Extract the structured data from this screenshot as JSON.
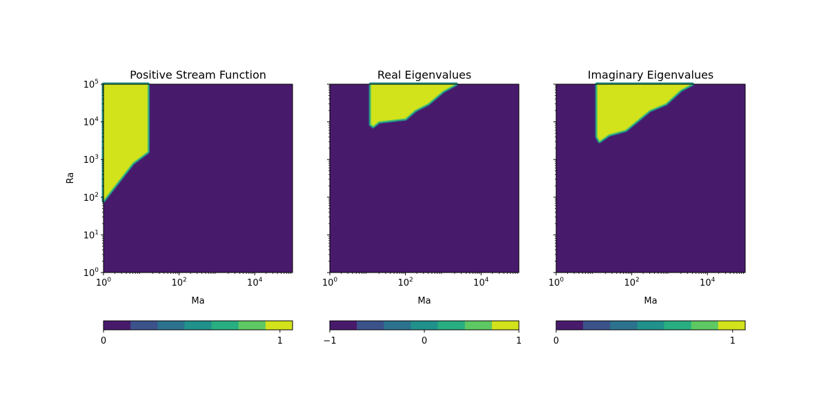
{
  "chart_data": [
    {
      "type": "heatmap",
      "title": "Positive Stream Function",
      "xlabel": "Ma",
      "ylabel": "Ra",
      "xscale": "log",
      "yscale": "log",
      "xlim": [
        1,
        100000
      ],
      "ylim": [
        1,
        100000
      ],
      "xticks": [
        {
          "value": 1,
          "base": "10",
          "exp": "0"
        },
        {
          "value": 100,
          "base": "10",
          "exp": "2"
        },
        {
          "value": 10000,
          "base": "10",
          "exp": "4"
        }
      ],
      "yticks": [
        {
          "value": 1,
          "base": "10",
          "exp": "0"
        },
        {
          "value": 10,
          "base": "10",
          "exp": "1"
        },
        {
          "value": 100,
          "base": "10",
          "exp": "2"
        },
        {
          "value": 1000,
          "base": "10",
          "exp": "3"
        },
        {
          "value": 10000,
          "base": "10",
          "exp": "4"
        },
        {
          "value": 100000,
          "base": "10",
          "exp": "5"
        }
      ],
      "background_value": 0,
      "region_value": 1,
      "region_boundary": [
        [
          1,
          100000
        ],
        [
          15,
          100000
        ],
        [
          15,
          1600
        ],
        [
          6,
          800
        ],
        [
          1,
          80
        ]
      ],
      "colorbar": {
        "range": [
          0,
          1.0714
        ],
        "ticks": [
          {
            "value": 0,
            "label": "0"
          },
          {
            "value": 1,
            "label": "1"
          }
        ]
      }
    },
    {
      "type": "heatmap",
      "title": "Real Eigenvalues",
      "xlabel": "Ma",
      "ylabel": "",
      "xscale": "log",
      "yscale": "log",
      "xlim": [
        1,
        100000
      ],
      "ylim": [
        1,
        100000
      ],
      "xticks": [
        {
          "value": 1,
          "base": "10",
          "exp": "0"
        },
        {
          "value": 100,
          "base": "10",
          "exp": "2"
        },
        {
          "value": 10000,
          "base": "10",
          "exp": "4"
        }
      ],
      "yticks": [],
      "background_value": -1,
      "region_value": 1,
      "region_boundary": [
        [
          12,
          100000
        ],
        [
          2200,
          100000
        ],
        [
          1000,
          65000
        ],
        [
          400,
          30000
        ],
        [
          180,
          20000
        ],
        [
          100,
          12000
        ],
        [
          20,
          10000
        ],
        [
          14,
          7500
        ],
        [
          12,
          8500
        ]
      ],
      "colorbar": {
        "range": [
          -1,
          1
        ],
        "ticks": [
          {
            "value": -1,
            "label": "−1"
          },
          {
            "value": 0,
            "label": "0"
          },
          {
            "value": 1,
            "label": "1"
          }
        ]
      }
    },
    {
      "type": "heatmap",
      "title": "Imaginary Eigenvalues",
      "xlabel": "Ma",
      "ylabel": "",
      "xscale": "log",
      "yscale": "log",
      "xlim": [
        1,
        100000
      ],
      "ylim": [
        1,
        100000
      ],
      "xticks": [
        {
          "value": 1,
          "base": "10",
          "exp": "0"
        },
        {
          "value": 100,
          "base": "10",
          "exp": "2"
        },
        {
          "value": 10000,
          "base": "10",
          "exp": "4"
        }
      ],
      "yticks": [],
      "background_value": 0,
      "region_value": 1,
      "region_boundary": [
        [
          12,
          100000
        ],
        [
          4000,
          100000
        ],
        [
          2000,
          70000
        ],
        [
          800,
          30000
        ],
        [
          300,
          20000
        ],
        [
          130,
          10000
        ],
        [
          70,
          6000
        ],
        [
          25,
          4500
        ],
        [
          14,
          3000
        ],
        [
          12,
          4000
        ]
      ],
      "colorbar": {
        "range": [
          0,
          1.0714
        ],
        "ticks": [
          {
            "value": 0,
            "label": "0"
          },
          {
            "value": 1,
            "label": "1"
          }
        ]
      }
    }
  ],
  "colormap": [
    "#481a6c",
    "#3b528b",
    "#2c728e",
    "#21918c",
    "#28ae80",
    "#5ec962",
    "#d2e21b"
  ],
  "colors": {
    "low": "#481a6c",
    "high": "#d2e21b",
    "edge": "#21918c"
  }
}
